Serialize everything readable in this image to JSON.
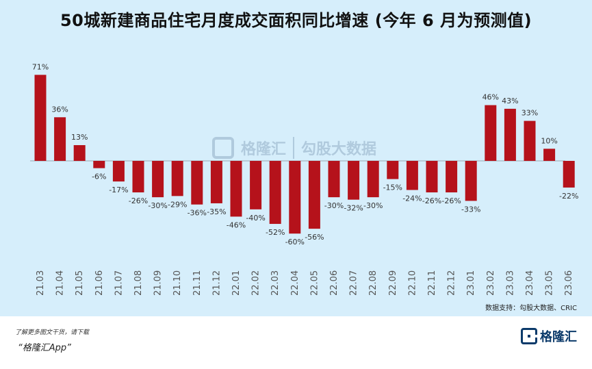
{
  "title": "50城新建商品住宅月度成交面积同比增速 (今年 6 月为预测值)",
  "source": "数据支持：勾股大数据、CRIC",
  "footer": {
    "note": "了解更多图文干货，请下载",
    "app": "“格隆汇App”"
  },
  "logo": {
    "text": "格隆汇"
  },
  "watermark": {
    "brand": "格隆汇",
    "partner": "勾股大数据"
  },
  "colors": {
    "bar": "#b5121b",
    "background": "#d6eefb"
  },
  "chart_data": {
    "type": "bar",
    "title": "50城新建商品住宅月度成交面积同比增速 (今年 6 月为预测值)",
    "xlabel": "",
    "ylabel": "",
    "ylim": [
      -60,
      71
    ],
    "unit": "%",
    "categories": [
      "21.03",
      "21.04",
      "21.05",
      "21.06",
      "21.07",
      "21.08",
      "21.09",
      "21.10",
      "21.11",
      "21.12",
      "22.01",
      "22.02",
      "22.03",
      "22.04",
      "22.05",
      "22.06",
      "22.07",
      "22.08",
      "22.09",
      "22.10",
      "22.11",
      "22.12",
      "23.01",
      "23.02",
      "23.03",
      "23.04",
      "23.05",
      "23.06"
    ],
    "values": [
      71,
      36,
      13,
      -6,
      -17,
      -26,
      -30,
      -29,
      -36,
      -35,
      -46,
      -40,
      -52,
      -60,
      -56,
      -30,
      -32,
      -30,
      -15,
      -24,
      -26,
      -26,
      -33,
      46,
      43,
      33,
      10,
      -22
    ],
    "labels": [
      "71%",
      "36%",
      "13%",
      "-6%",
      "-17%",
      "-26%",
      "-30%",
      "-29%",
      "-36%",
      "-35%",
      "-46%",
      "-40%",
      "-52%",
      "-60%",
      "-56%",
      "-30%",
      "-32%",
      "-30%",
      "-15%",
      "-24%",
      "-26%",
      "-26%",
      "-33%",
      "46%",
      "43%",
      "33%",
      "10%",
      "-22%"
    ]
  }
}
